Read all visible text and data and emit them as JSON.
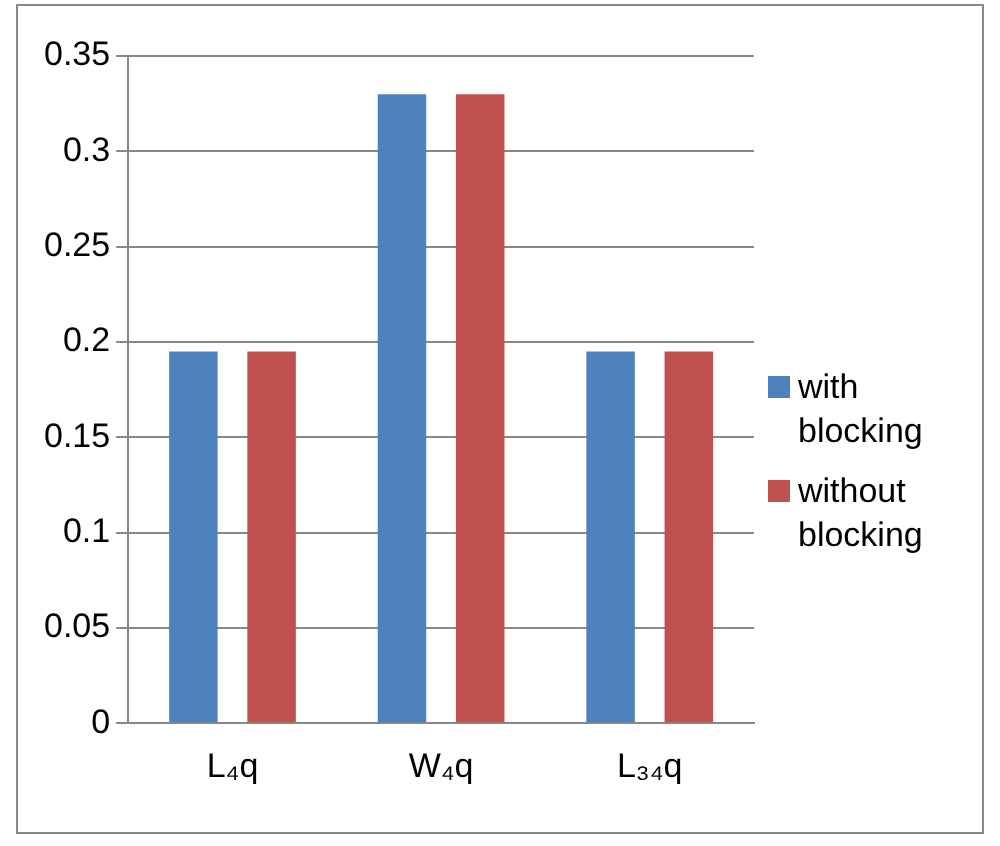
{
  "chart_data": {
    "type": "bar",
    "categories": [
      "L₄q",
      "W₄q",
      "L₃₄q"
    ],
    "series": [
      {
        "name": "with blocking",
        "color": "#4f81bd",
        "values": [
          0.195,
          0.33,
          0.195
        ]
      },
      {
        "name": "without blocking",
        "color": "#c0504d",
        "values": [
          0.195,
          0.33,
          0.195
        ]
      }
    ],
    "ylim": [
      0,
      0.35
    ],
    "yticks": [
      0,
      0.05,
      0.1,
      0.15,
      0.2,
      0.25,
      0.3,
      0.35
    ],
    "grid": "y",
    "legend": "right"
  }
}
